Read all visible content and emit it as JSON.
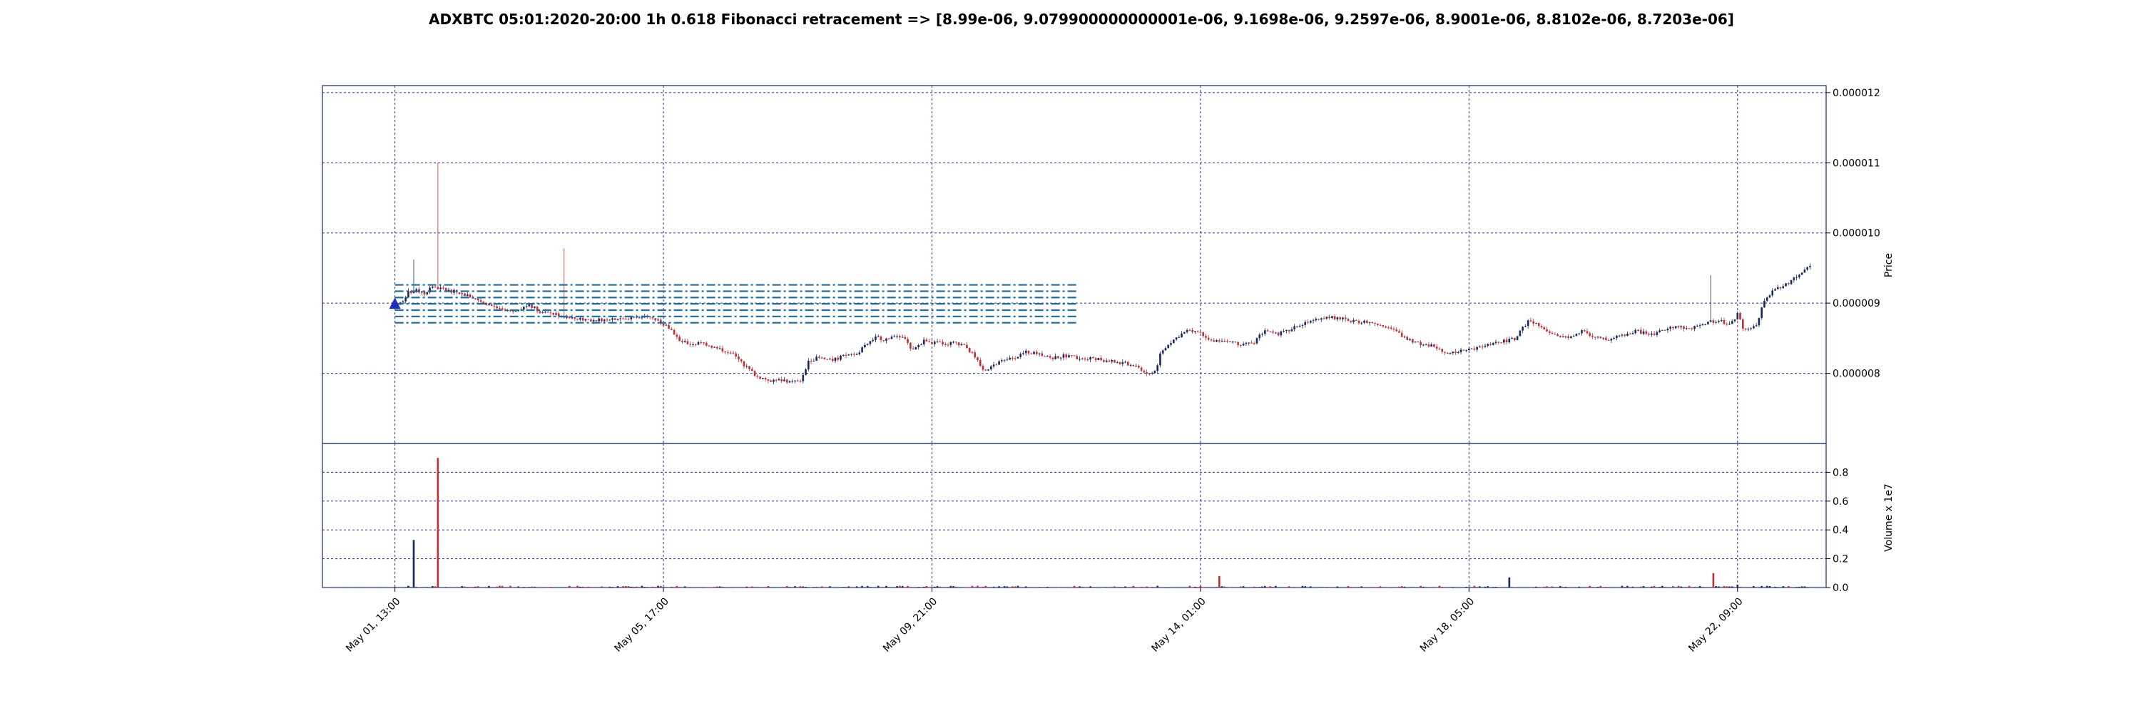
{
  "chart_data": {
    "type": "candlestick",
    "title": "ADXBTC 05:01:2020-20:00 1h 0.618 Fibonacci retracement => [8.99e-06, 9.079900000000001e-06, 9.1698e-06, 9.2597e-06, 8.9001e-06, 8.8102e-06, 8.7203e-06]",
    "price_axis": {
      "label": "Price",
      "ticks": [
        8e-06,
        9e-06,
        1e-05,
        1.1e-05,
        1.2e-05
      ],
      "tick_labels": [
        "0.000008",
        "0.000009",
        "0.000010",
        "0.000011",
        "0.000012"
      ],
      "ylim": [
        7e-06,
        1.21e-05
      ],
      "side": "right"
    },
    "volume_axis": {
      "label": "Volume x 1e7",
      "ticks": [
        0.0,
        0.2,
        0.4,
        0.6,
        0.8
      ],
      "tick_labels": [
        "0.0",
        "0.2",
        "0.4",
        "0.6",
        "0.8"
      ],
      "ylim": [
        0,
        1.0
      ],
      "side": "right"
    },
    "x_axis": {
      "tick_labels": [
        "May 01, 13:00",
        "May 05, 17:00",
        "May 09, 21:00",
        "May 14, 01:00",
        "May 18, 05:00",
        "May 22, 09:00"
      ],
      "tick_hours": [
        0,
        100,
        200,
        300,
        400,
        500
      ],
      "range_hours": [
        -27,
        533
      ]
    },
    "fibonacci_levels": [
      8.99e-06,
      9.0799e-06,
      9.1698e-06,
      9.2597e-06,
      8.9001e-06,
      8.8102e-06,
      8.7203e-06
    ],
    "fib_span_hours": [
      0,
      508
    ],
    "marker": {
      "hour": 0,
      "price": 8.99e-06,
      "shape": "triangle-up"
    },
    "close_path": [
      [
        0,
        8.99e-06
      ],
      [
        5,
        9.02e-06
      ],
      [
        10,
        9.15e-06
      ],
      [
        17,
        9.18e-06
      ],
      [
        22,
        9.12e-06
      ],
      [
        27,
        9.25e-06
      ],
      [
        35,
        9.2e-06
      ],
      [
        45,
        9.16e-06
      ],
      [
        55,
        9.1e-06
      ],
      [
        65,
        9.02e-06
      ],
      [
        72,
        8.96e-06
      ],
      [
        80,
        8.9e-06
      ],
      [
        88,
        8.87e-06
      ],
      [
        95,
        8.93e-06
      ],
      [
        100,
        8.98e-06
      ],
      [
        110,
        8.86e-06
      ],
      [
        120,
        8.84e-06
      ],
      [
        130,
        8.79e-06
      ],
      [
        140,
        8.77e-06
      ],
      [
        150,
        8.76e-06
      ],
      [
        160,
        8.78e-06
      ],
      [
        175,
        8.79e-06
      ],
      [
        185,
        8.8e-06
      ],
      [
        192,
        8.78e-06
      ],
      [
        200,
        8.7e-06
      ],
      [
        207,
        8.6e-06
      ],
      [
        212,
        8.45e-06
      ],
      [
        220,
        8.42e-06
      ],
      [
        230,
        8.43e-06
      ],
      [
        240,
        8.35e-06
      ],
      [
        250,
        8.3e-06
      ],
      [
        260,
        8.12e-06
      ],
      [
        270,
        7.95e-06
      ],
      [
        280,
        7.9e-06
      ],
      [
        290,
        7.9e-06
      ],
      [
        295,
        7.88e-06
      ],
      [
        303,
        7.9e-06
      ],
      [
        308,
        8.18e-06
      ],
      [
        315,
        8.22e-06
      ],
      [
        325,
        8.18e-06
      ],
      [
        335,
        8.25e-06
      ],
      [
        345,
        8.3e-06
      ],
      [
        352,
        8.42e-06
      ],
      [
        358,
        8.52e-06
      ],
      [
        365,
        8.48e-06
      ],
      [
        372,
        8.55e-06
      ],
      [
        380,
        8.5e-06
      ],
      [
        385,
        8.3e-06
      ],
      [
        390,
        8.4e-06
      ],
      [
        395,
        8.48e-06
      ],
      [
        400,
        8.44e-06
      ],
      [
        410,
        8.42e-06
      ],
      [
        418,
        8.44e-06
      ],
      [
        425,
        8.38e-06
      ],
      [
        430,
        8.28e-06
      ],
      [
        438,
        8.05e-06
      ],
      [
        443,
        8.08e-06
      ],
      [
        450,
        8.15e-06
      ],
      [
        460,
        8.22e-06
      ],
      [
        470,
        8.3e-06
      ],
      [
        480,
        8.28e-06
      ],
      [
        490,
        8.22e-06
      ],
      [
        500,
        8.25e-06
      ],
      [
        510,
        8.22e-06
      ],
      [
        520,
        8.22e-06
      ],
      [
        530,
        8.18e-06
      ],
      [
        540,
        8.15e-06
      ],
      [
        550,
        8.12e-06
      ],
      [
        556,
        8.05e-06
      ],
      [
        562,
        7.98e-06
      ],
      [
        567,
        8.05e-06
      ],
      [
        570,
        8.3e-06
      ],
      [
        578,
        8.45e-06
      ],
      [
        585,
        8.55e-06
      ],
      [
        592,
        8.62e-06
      ],
      [
        600,
        8.58e-06
      ],
      [
        610,
        8.45e-06
      ],
      [
        620,
        8.44e-06
      ],
      [
        630,
        8.42e-06
      ],
      [
        640,
        8.45e-06
      ],
      [
        648,
        8.62e-06
      ],
      [
        655,
        8.55e-06
      ],
      [
        665,
        8.6e-06
      ],
      [
        675,
        8.7e-06
      ],
      [
        685,
        8.78e-06
      ],
      [
        695,
        8.8e-06
      ],
      [
        705,
        8.78e-06
      ],
      [
        715,
        8.74e-06
      ],
      [
        725,
        8.72e-06
      ],
      [
        735,
        8.7e-06
      ],
      [
        745,
        8.6e-06
      ],
      [
        755,
        8.47e-06
      ],
      [
        765,
        8.42e-06
      ],
      [
        775,
        8.38e-06
      ],
      [
        785,
        8.28e-06
      ],
      [
        795,
        8.32e-06
      ],
      [
        805,
        8.35e-06
      ],
      [
        815,
        8.4e-06
      ],
      [
        825,
        8.45e-06
      ],
      [
        835,
        8.5e-06
      ],
      [
        845,
        8.78e-06
      ],
      [
        855,
        8.62e-06
      ],
      [
        865,
        8.52e-06
      ],
      [
        875,
        8.5e-06
      ],
      [
        885,
        8.6e-06
      ],
      [
        895,
        8.5e-06
      ],
      [
        905,
        8.48e-06
      ],
      [
        915,
        8.55e-06
      ],
      [
        925,
        8.6e-06
      ],
      [
        935,
        8.55e-06
      ],
      [
        945,
        8.62e-06
      ],
      [
        955,
        8.68e-06
      ],
      [
        965,
        8.62e-06
      ],
      [
        975,
        8.72e-06
      ],
      [
        985,
        8.75e-06
      ],
      [
        995,
        8.7e-06
      ],
      [
        1000,
        8.85e-06
      ],
      [
        1005,
        8.6e-06
      ],
      [
        1010,
        8.62e-06
      ],
      [
        1015,
        8.72e-06
      ],
      [
        1020,
        9.05e-06
      ],
      [
        1028,
        9.2e-06
      ],
      [
        1035,
        9.25e-06
      ],
      [
        1042,
        9.35e-06
      ],
      [
        1048,
        9.45e-06
      ],
      [
        1054,
        9.52e-06
      ]
    ],
    "close_path_scale": "x in half-hours",
    "spikes": [
      {
        "hour": 7,
        "high": 9.62e-06
      },
      {
        "hour": 16,
        "high": 1.1e-05
      },
      {
        "hour": 63,
        "high": 9.78e-06
      },
      {
        "hour": 490,
        "high": 9.4e-06
      }
    ],
    "volume_spikes": [
      {
        "hour": 7,
        "value": 0.33
      },
      {
        "hour": 16,
        "value": 0.9
      },
      {
        "hour": 307,
        "value": 0.08
      },
      {
        "hour": 415,
        "value": 0.07
      },
      {
        "hour": 491,
        "value": 0.1
      },
      {
        "hour": 500,
        "value": 0.02
      }
    ],
    "colors": {
      "up": "#1a2a5a",
      "down": "#c0303a",
      "grid": "#2b2b8f",
      "fib": "#1f6b9a",
      "marker": "#1f2fb8"
    }
  }
}
